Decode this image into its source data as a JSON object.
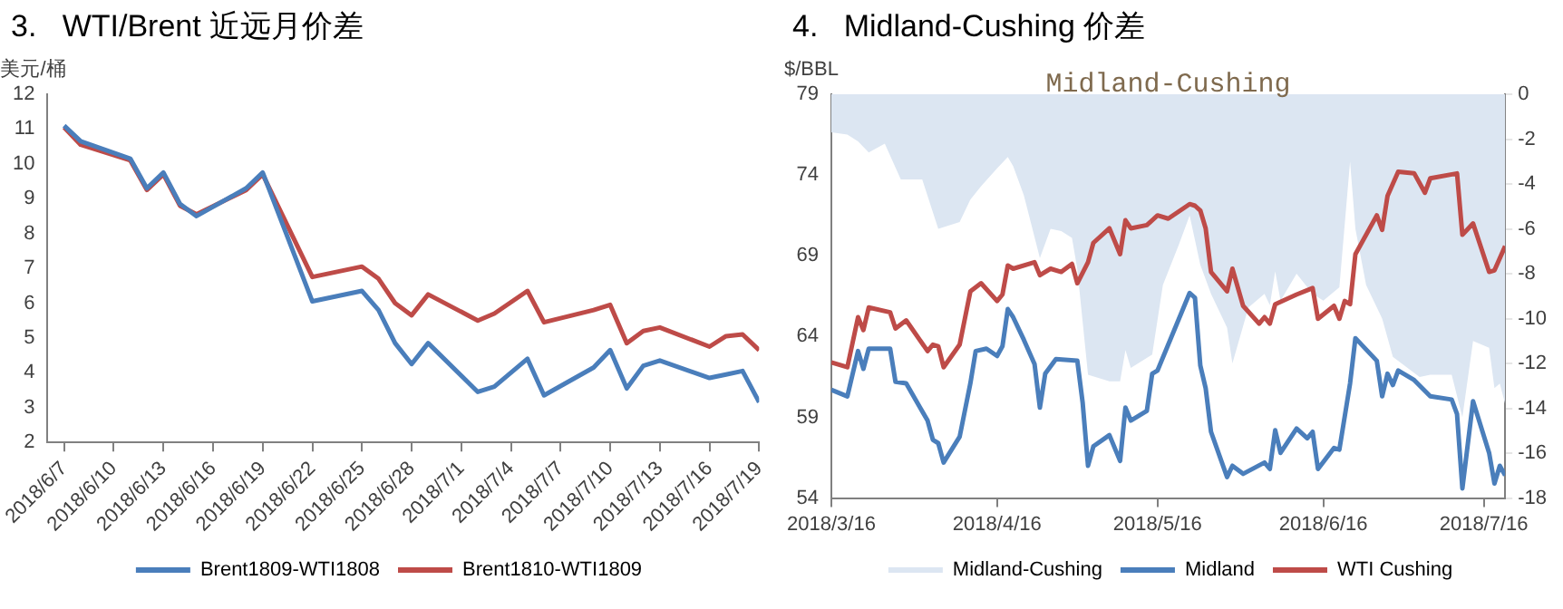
{
  "chart_data": [
    {
      "type": "line",
      "title": "3.   WTI/Brent 近远月价差",
      "ylabel": "美元/桶",
      "legend": "bottom",
      "grid": false,
      "xlim": [
        "2018-06-06",
        "2018-07-19"
      ],
      "xticks": [
        {
          "value": "2018-06-07",
          "label": "2018/6/7"
        },
        {
          "value": "2018-06-10",
          "label": "2018/6/10"
        },
        {
          "value": "2018-06-13",
          "label": "2018/6/13"
        },
        {
          "value": "2018-06-16",
          "label": "2018/6/16"
        },
        {
          "value": "2018-06-19",
          "label": "2018/6/19"
        },
        {
          "value": "2018-06-22",
          "label": "2018/6/22"
        },
        {
          "value": "2018-06-25",
          "label": "2018/6/25"
        },
        {
          "value": "2018-06-28",
          "label": "2018/6/28"
        },
        {
          "value": "2018-07-01",
          "label": "2018/7/1"
        },
        {
          "value": "2018-07-04",
          "label": "2018/7/4"
        },
        {
          "value": "2018-07-07",
          "label": "2018/7/7"
        },
        {
          "value": "2018-07-10",
          "label": "2018/7/10"
        },
        {
          "value": "2018-07-13",
          "label": "2018/7/13"
        },
        {
          "value": "2018-07-16",
          "label": "2018/7/16"
        },
        {
          "value": "2018-07-19",
          "label": "2018/7/19"
        }
      ],
      "ylim": [
        2,
        12
      ],
      "yticks": [
        2,
        3,
        4,
        5,
        6,
        7,
        8,
        9,
        10,
        11,
        12
      ],
      "x": [
        "2018-06-07",
        "2018-06-08",
        "2018-06-11",
        "2018-06-12",
        "2018-06-13",
        "2018-06-14",
        "2018-06-15",
        "2018-06-18",
        "2018-06-19",
        "2018-06-22",
        "2018-06-25",
        "2018-06-26",
        "2018-06-27",
        "2018-06-28",
        "2018-06-29",
        "2018-07-02",
        "2018-07-03",
        "2018-07-05",
        "2018-07-06",
        "2018-07-09",
        "2018-07-10",
        "2018-07-11",
        "2018-07-12",
        "2018-07-13",
        "2018-07-16",
        "2018-07-17",
        "2018-07-18",
        "2018-07-19"
      ],
      "series": [
        {
          "name": "Brent1809-WTI1808",
          "color": "#4a7ebb",
          "values": [
            11.1,
            10.65,
            10.15,
            9.3,
            9.75,
            8.85,
            8.5,
            9.3,
            9.75,
            6.05,
            6.35,
            5.8,
            4.85,
            4.25,
            4.85,
            3.45,
            3.6,
            4.4,
            3.35,
            4.15,
            4.65,
            3.55,
            4.2,
            4.35,
            3.85,
            3.95,
            4.05,
            3.15
          ]
        },
        {
          "name": "Brent1810-WTI1809",
          "color": "#be4b48",
          "values": [
            11.05,
            10.55,
            10.1,
            9.25,
            9.7,
            8.8,
            8.55,
            9.25,
            9.7,
            6.75,
            7.05,
            6.7,
            6.0,
            5.65,
            6.25,
            5.5,
            5.7,
            6.35,
            5.45,
            5.8,
            5.95,
            4.85,
            5.2,
            5.3,
            4.75,
            5.05,
            5.1,
            4.65
          ]
        }
      ]
    },
    {
      "type": "line",
      "title": "4.   Midland-Cushing 价差",
      "subtitle": "Midland-Cushing",
      "ylabel": "$/BBL",
      "legend": "bottom",
      "grid": false,
      "xlim": [
        "2018-03-16",
        "2018-07-20"
      ],
      "xticks": [
        {
          "value": "2018-03-16",
          "label": "2018/3/16"
        },
        {
          "value": "2018-04-16",
          "label": "2018/4/16"
        },
        {
          "value": "2018-05-16",
          "label": "2018/5/16"
        },
        {
          "value": "2018-06-16",
          "label": "2018/6/16"
        },
        {
          "value": "2018-07-16",
          "label": "2018/7/16"
        }
      ],
      "ylim": [
        54,
        79
      ],
      "yticks": [
        54,
        59,
        64,
        69,
        74,
        79
      ],
      "y2lim": [
        -18,
        0
      ],
      "y2ticks": [
        -18,
        -16,
        -14,
        -12,
        -10,
        -8,
        -6,
        -4,
        -2,
        0
      ],
      "series": [
        {
          "name": "Midland-Cushing",
          "type": "area",
          "axis": "y2",
          "color": "#dce6f2",
          "x": [
            "2018-03-16",
            "2018-03-19",
            "2018-03-21",
            "2018-03-23",
            "2018-03-26",
            "2018-03-29",
            "2018-04-02",
            "2018-04-05",
            "2018-04-09",
            "2018-04-11",
            "2018-04-13",
            "2018-04-16",
            "2018-04-18",
            "2018-04-19",
            "2018-04-21",
            "2018-04-24",
            "2018-04-26",
            "2018-04-28",
            "2018-04-30",
            "2018-05-01",
            "2018-05-03",
            "2018-05-07",
            "2018-05-09",
            "2018-05-10",
            "2018-05-11",
            "2018-05-15",
            "2018-05-17",
            "2018-05-20",
            "2018-05-22",
            "2018-05-24",
            "2018-05-26",
            "2018-05-29",
            "2018-05-30",
            "2018-06-02",
            "2018-06-05",
            "2018-06-06",
            "2018-06-07",
            "2018-06-08",
            "2018-06-11",
            "2018-06-14",
            "2018-06-16",
            "2018-06-19",
            "2018-06-21",
            "2018-06-22",
            "2018-06-24",
            "2018-06-27",
            "2018-06-29",
            "2018-07-04",
            "2018-07-06",
            "2018-07-10",
            "2018-07-12",
            "2018-07-14",
            "2018-07-17",
            "2018-07-18",
            "2018-07-19",
            "2018-07-20"
          ],
          "values": [
            -1.7,
            -1.8,
            -2.1,
            -2.6,
            -2.2,
            -3.8,
            -3.8,
            -6.0,
            -5.7,
            -4.7,
            -4.1,
            -3.3,
            -2.8,
            -3.2,
            -4.5,
            -7.3,
            -6.0,
            -6.1,
            -6.4,
            -7.8,
            -12.5,
            -12.8,
            -12.8,
            -11.4,
            -12.2,
            -11.6,
            -8.5,
            -6.7,
            -5.4,
            -7.6,
            -8.9,
            -10.4,
            -12.0,
            -9.5,
            -8.9,
            -9.4,
            -7.9,
            -9.2,
            -8.0,
            -8.9,
            -9.2,
            -8.6,
            -3.0,
            -6.0,
            -8.5,
            -10.0,
            -11.7,
            -12.6,
            -12.5,
            -12.5,
            -14.4,
            -11.0,
            -11.3,
            -13.1,
            -12.9,
            -13.8
          ]
        },
        {
          "name": "Midland",
          "color": "#4a7ebb",
          "x": [
            "2018-03-16",
            "2018-03-19",
            "2018-03-21",
            "2018-03-22",
            "2018-03-23",
            "2018-03-27",
            "2018-03-28",
            "2018-03-30",
            "2018-04-03",
            "2018-04-04",
            "2018-04-05",
            "2018-04-06",
            "2018-04-09",
            "2018-04-11",
            "2018-04-12",
            "2018-04-14",
            "2018-04-16",
            "2018-04-17",
            "2018-04-18",
            "2018-04-19",
            "2018-04-21",
            "2018-04-23",
            "2018-04-24",
            "2018-04-25",
            "2018-04-27",
            "2018-05-01",
            "2018-05-02",
            "2018-05-03",
            "2018-05-04",
            "2018-05-07",
            "2018-05-09",
            "2018-05-10",
            "2018-05-11",
            "2018-05-14",
            "2018-05-15",
            "2018-05-16",
            "2018-05-22",
            "2018-05-23",
            "2018-05-24",
            "2018-05-25",
            "2018-05-26",
            "2018-05-29",
            "2018-05-30",
            "2018-06-01",
            "2018-06-05",
            "2018-06-06",
            "2018-06-07",
            "2018-06-08",
            "2018-06-11",
            "2018-06-13",
            "2018-06-14",
            "2018-06-15",
            "2018-06-18",
            "2018-06-19",
            "2018-06-21",
            "2018-06-22",
            "2018-06-26",
            "2018-06-27",
            "2018-06-28",
            "2018-06-29",
            "2018-06-30",
            "2018-07-03",
            "2018-07-06",
            "2018-07-10",
            "2018-07-11",
            "2018-07-12",
            "2018-07-14",
            "2018-07-17",
            "2018-07-18",
            "2018-07-19",
            "2018-07-20"
          ],
          "values": [
            60.7,
            60.3,
            63.1,
            62.0,
            63.25,
            63.25,
            61.2,
            61.1,
            58.8,
            57.6,
            57.4,
            56.2,
            57.8,
            61.1,
            63.1,
            63.25,
            62.8,
            63.4,
            65.7,
            65.2,
            63.8,
            62.3,
            59.6,
            61.7,
            62.6,
            62.5,
            59.9,
            56.0,
            57.2,
            57.9,
            56.3,
            59.6,
            58.8,
            59.4,
            61.7,
            61.9,
            66.7,
            66.4,
            62.2,
            60.8,
            58.1,
            55.3,
            56.0,
            55.5,
            56.2,
            55.8,
            58.2,
            56.8,
            58.3,
            57.7,
            58.1,
            55.8,
            57.1,
            57.0,
            61.1,
            63.9,
            62.5,
            60.3,
            61.7,
            61.0,
            61.9,
            61.3,
            60.3,
            60.1,
            59.2,
            54.6,
            60.0,
            56.8,
            54.9,
            56.0,
            55.4
          ]
        },
        {
          "name": "WTI Cushing",
          "color": "#be4b48",
          "x": [
            "2018-03-16",
            "2018-03-19",
            "2018-03-21",
            "2018-03-22",
            "2018-03-23",
            "2018-03-27",
            "2018-03-28",
            "2018-03-30",
            "2018-04-03",
            "2018-04-04",
            "2018-04-05",
            "2018-04-06",
            "2018-04-09",
            "2018-04-11",
            "2018-04-13",
            "2018-04-16",
            "2018-04-17",
            "2018-04-18",
            "2018-04-19",
            "2018-04-23",
            "2018-04-24",
            "2018-04-26",
            "2018-04-28",
            "2018-04-30",
            "2018-05-01",
            "2018-05-03",
            "2018-05-04",
            "2018-05-07",
            "2018-05-09",
            "2018-05-10",
            "2018-05-11",
            "2018-05-14",
            "2018-05-16",
            "2018-05-18",
            "2018-05-22",
            "2018-05-23",
            "2018-05-24",
            "2018-05-25",
            "2018-05-26",
            "2018-05-29",
            "2018-05-30",
            "2018-06-01",
            "2018-06-04",
            "2018-06-05",
            "2018-06-06",
            "2018-06-07",
            "2018-06-11",
            "2018-06-14",
            "2018-06-15",
            "2018-06-18",
            "2018-06-19",
            "2018-06-20",
            "2018-06-21",
            "2018-06-22",
            "2018-06-26",
            "2018-06-27",
            "2018-06-28",
            "2018-06-30",
            "2018-07-03",
            "2018-07-05",
            "2018-07-06",
            "2018-07-11",
            "2018-07-12",
            "2018-07-14",
            "2018-07-17",
            "2018-07-18",
            "2018-07-20"
          ],
          "values": [
            62.4,
            62.1,
            65.2,
            64.4,
            65.8,
            65.5,
            64.5,
            65.0,
            63.1,
            63.5,
            63.4,
            62.1,
            63.5,
            66.8,
            67.3,
            66.2,
            66.6,
            68.4,
            68.2,
            68.6,
            67.8,
            68.2,
            68.0,
            68.5,
            67.3,
            68.6,
            69.8,
            70.7,
            69.1,
            71.2,
            70.7,
            70.9,
            71.5,
            71.3,
            72.2,
            72.1,
            71.8,
            70.7,
            68.0,
            66.8,
            68.2,
            65.9,
            64.8,
            65.2,
            64.8,
            66.0,
            66.6,
            67.0,
            65.1,
            65.9,
            65.1,
            66.2,
            66.0,
            69.1,
            71.5,
            70.6,
            72.7,
            74.2,
            74.1,
            72.9,
            73.8,
            74.1,
            70.3,
            71.0,
            68.0,
            68.1,
            69.6
          ]
        }
      ]
    }
  ]
}
